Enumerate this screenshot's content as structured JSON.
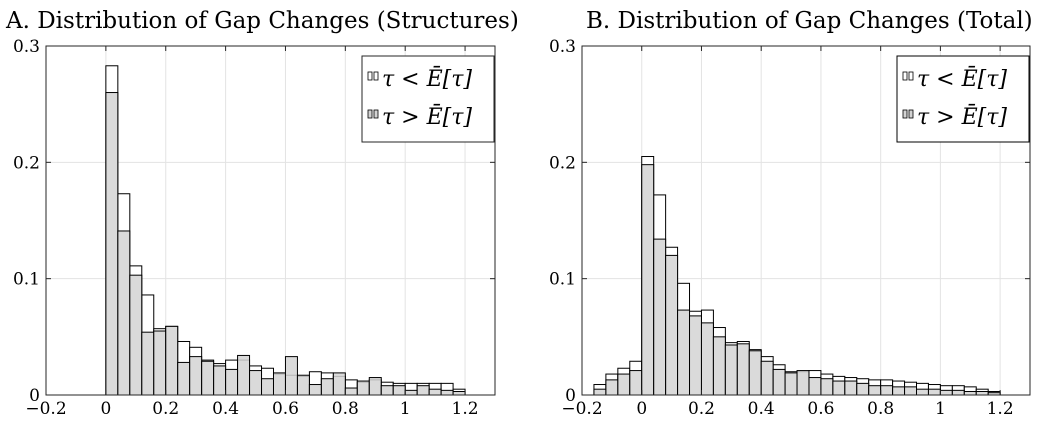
{
  "chart_data": [
    {
      "type": "bar",
      "title": "A. Distribution of Gap Changes (Structures)",
      "xlabel": "",
      "ylabel": "",
      "xlim": [
        -0.2,
        1.3
      ],
      "ylim": [
        0,
        0.3
      ],
      "xticks": [
        -0.2,
        0,
        0.2,
        0.4,
        0.6,
        0.8,
        1,
        1.2
      ],
      "xtick_labels": [
        "−0.2",
        "0",
        "0.2",
        "0.4",
        "0.6",
        "0.8",
        "1",
        "1.2"
      ],
      "yticks": [
        0,
        0.1,
        0.2,
        0.3
      ],
      "ytick_labels": [
        "0",
        "0.1",
        "0.2",
        "0.3"
      ],
      "bin_width": 0.04,
      "grid": true,
      "legend_position": "top-right",
      "x": [
        0.02,
        0.06,
        0.1,
        0.14,
        0.18,
        0.22,
        0.26,
        0.3,
        0.34,
        0.38,
        0.42,
        0.46,
        0.5,
        0.54,
        0.58,
        0.62,
        0.66,
        0.7,
        0.74,
        0.78,
        0.82,
        0.86,
        0.9,
        0.94,
        0.98,
        1.02,
        1.06,
        1.1,
        1.14,
        1.18
      ],
      "series": [
        {
          "name": "τ < Ē[τ]",
          "fill": "#ffffff",
          "values": [
            0.283,
            0.173,
            0.111,
            0.086,
            0.057,
            0.059,
            0.046,
            0.041,
            0.03,
            0.027,
            0.03,
            0.03,
            0.025,
            0.023,
            0.018,
            0.017,
            0.016,
            0.02,
            0.019,
            0.016,
            0.013,
            0.011,
            0.013,
            0.011,
            0.01,
            0.01,
            0.01,
            0.01,
            0.01,
            0.005
          ]
        },
        {
          "name": "τ > Ē[τ]",
          "fill": "#d3d3d3",
          "values": [
            0.26,
            0.141,
            0.103,
            0.054,
            0.055,
            0.059,
            0.028,
            0.033,
            0.029,
            0.025,
            0.022,
            0.034,
            0.021,
            0.014,
            0.019,
            0.033,
            0.017,
            0.009,
            0.014,
            0.019,
            0.006,
            0.012,
            0.015,
            0.008,
            0.008,
            0.004,
            0.008,
            0.005,
            0.004,
            0.003
          ]
        }
      ]
    },
    {
      "type": "bar",
      "title": "B. Distribution of Gap Changes (Total)",
      "xlabel": "",
      "ylabel": "",
      "xlim": [
        -0.2,
        1.3
      ],
      "ylim": [
        0,
        0.3
      ],
      "xticks": [
        -0.2,
        0,
        0.2,
        0.4,
        0.6,
        0.8,
        1,
        1.2
      ],
      "xtick_labels": [
        "−0.2",
        "0",
        "0.2",
        "0.4",
        "0.6",
        "0.8",
        "1",
        "1.2"
      ],
      "yticks": [
        0,
        0.1,
        0.2,
        0.3
      ],
      "ytick_labels": [
        "0",
        "0.1",
        "0.2",
        "0.3"
      ],
      "bin_width": 0.04,
      "grid": true,
      "legend_position": "top-right",
      "x": [
        -0.14,
        -0.1,
        -0.06,
        -0.02,
        0.02,
        0.06,
        0.1,
        0.14,
        0.18,
        0.22,
        0.26,
        0.3,
        0.34,
        0.38,
        0.42,
        0.46,
        0.5,
        0.54,
        0.58,
        0.62,
        0.66,
        0.7,
        0.74,
        0.78,
        0.82,
        0.86,
        0.9,
        0.94,
        0.98,
        1.02,
        1.06,
        1.1,
        1.14,
        1.18
      ],
      "series": [
        {
          "name": "τ < Ē[τ]",
          "fill": "#ffffff",
          "values": [
            0.009,
            0.018,
            0.023,
            0.029,
            0.205,
            0.172,
            0.127,
            0.096,
            0.072,
            0.073,
            0.058,
            0.045,
            0.046,
            0.039,
            0.033,
            0.026,
            0.02,
            0.02,
            0.021,
            0.018,
            0.016,
            0.015,
            0.014,
            0.013,
            0.013,
            0.012,
            0.011,
            0.01,
            0.009,
            0.008,
            0.008,
            0.007,
            0.005,
            0.003
          ]
        },
        {
          "name": "τ > Ē[τ]",
          "fill": "#d3d3d3",
          "values": [
            0.005,
            0.013,
            0.018,
            0.021,
            0.198,
            0.134,
            0.12,
            0.073,
            0.068,
            0.062,
            0.05,
            0.043,
            0.044,
            0.038,
            0.029,
            0.022,
            0.019,
            0.021,
            0.015,
            0.014,
            0.012,
            0.012,
            0.01,
            0.008,
            0.008,
            0.007,
            0.007,
            0.005,
            0.005,
            0.004,
            0.004,
            0.003,
            0.003,
            0.002
          ]
        }
      ]
    }
  ]
}
